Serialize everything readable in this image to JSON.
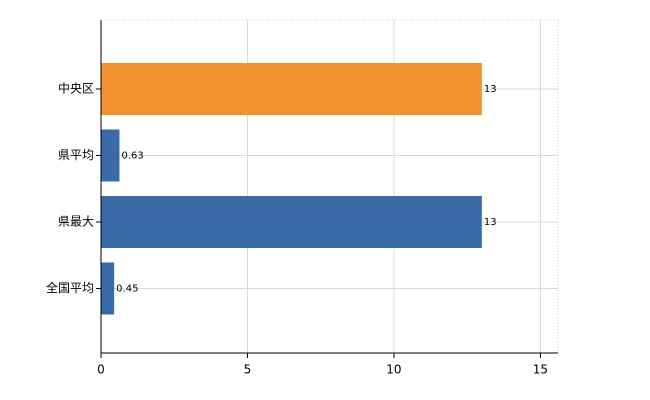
{
  "chart_data": {
    "type": "hbar",
    "categories": [
      "中央区",
      "県平均",
      "県最大",
      "全国平均"
    ],
    "values": [
      13,
      0.63,
      13,
      0.45
    ],
    "colors": [
      "#f0922f",
      "#3a6aa8",
      "#3a6aa8",
      "#3a6aa8"
    ],
    "xlim": [
      0,
      15.6
    ],
    "xticks": [
      0,
      5,
      10,
      15
    ],
    "grid": true
  }
}
